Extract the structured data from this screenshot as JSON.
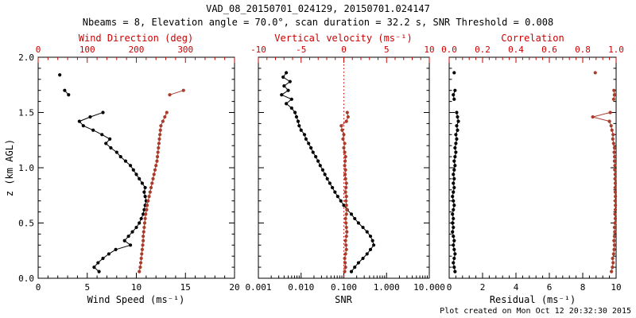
{
  "header": {
    "title": "VAD_08_20150701_024129, 20150701.024147",
    "subtitle": "Nbeams = 8, Elevation angle = 70.0°, scan duration = 32.2 s, SNR Threshold = 0.008"
  },
  "footer": {
    "created": "Plot created on Mon Oct 12 20:32:30 2015"
  },
  "colors": {
    "black": "#000000",
    "red_series": "#a93c2b",
    "red_axis": "#cc0000",
    "background": "#ffffff"
  },
  "y_axis": {
    "label": "z (km AGL)",
    "range": [
      0,
      2
    ],
    "majors": [
      {
        "v": 0.0,
        "label": "0.0"
      },
      {
        "v": 0.5,
        "label": "0.5"
      },
      {
        "v": 1.0,
        "label": "1.0"
      },
      {
        "v": 1.5,
        "label": "1.5"
      },
      {
        "v": 2.0,
        "label": "2.0"
      }
    ]
  },
  "chart_data": [
    {
      "type": "scatter",
      "name": "wind-panel",
      "top_title": "Wind Direction (deg)",
      "bottom_title": "Wind Speed (ms⁻¹)",
      "bottom_axis": {
        "scale": "linear",
        "range": [
          0,
          20
        ],
        "ticks": [
          {
            "v": 0,
            "label": "0"
          },
          {
            "v": 5,
            "label": "5"
          },
          {
            "v": 10,
            "label": "10"
          },
          {
            "v": 15,
            "label": "15"
          },
          {
            "v": 20,
            "label": "20"
          }
        ]
      },
      "top_axis": {
        "scale": "linear",
        "range": [
          0,
          400
        ],
        "ticks": [
          {
            "v": 0,
            "label": "0"
          },
          {
            "v": 100,
            "label": "100"
          },
          {
            "v": 200,
            "label": "200"
          },
          {
            "v": 300,
            "label": "300"
          },
          {
            "v": 400,
            "label": ""
          }
        ]
      },
      "series": [
        {
          "name": "wind_speed",
          "axis": "bottom",
          "color": "black",
          "z": [
            0.06,
            0.1,
            0.14,
            0.18,
            0.22,
            0.26,
            0.3,
            0.34,
            0.38,
            0.42,
            0.46,
            0.5,
            0.54,
            0.58,
            0.62,
            0.66,
            0.7,
            0.74,
            0.78,
            0.82,
            0.86,
            0.9,
            0.94,
            0.98,
            1.02,
            1.06,
            1.1,
            1.14,
            1.18,
            1.22,
            1.26,
            1.3,
            1.34,
            1.38,
            1.42,
            1.46,
            1.5,
            1.66,
            1.7,
            1.84
          ],
          "v": [
            6.2,
            5.7,
            6.1,
            6.6,
            7.2,
            7.9,
            9.4,
            8.8,
            9.2,
            9.6,
            10.0,
            10.3,
            10.5,
            10.7,
            10.8,
            10.9,
            11.0,
            10.9,
            10.8,
            10.9,
            10.6,
            10.3,
            10.0,
            9.7,
            9.4,
            8.9,
            8.4,
            8.0,
            7.4,
            6.9,
            7.3,
            6.5,
            5.6,
            4.6,
            4.2,
            5.3,
            6.6,
            3.1,
            2.7,
            2.2
          ]
        },
        {
          "name": "wind_direction",
          "axis": "top",
          "color": "red_series",
          "z": [
            0.06,
            0.1,
            0.14,
            0.18,
            0.22,
            0.26,
            0.3,
            0.34,
            0.38,
            0.42,
            0.46,
            0.5,
            0.54,
            0.58,
            0.62,
            0.66,
            0.7,
            0.74,
            0.78,
            0.82,
            0.86,
            0.9,
            0.94,
            0.98,
            1.02,
            1.06,
            1.1,
            1.14,
            1.18,
            1.22,
            1.26,
            1.3,
            1.34,
            1.38,
            1.42,
            1.46,
            1.5,
            1.66,
            1.7
          ],
          "v": [
            206,
            208,
            209,
            210,
            211,
            212,
            213,
            214,
            214,
            215,
            216,
            217,
            218,
            219,
            221,
            222,
            224,
            226,
            228,
            230,
            232,
            234,
            236,
            238,
            240,
            242,
            243,
            244,
            245,
            246,
            247,
            248,
            249,
            250,
            254,
            258,
            262,
            268,
            296
          ]
        }
      ]
    },
    {
      "type": "scatter",
      "name": "snr-panel",
      "top_title": "Vertical velocity (ms⁻¹)",
      "bottom_title": "SNR",
      "bottom_axis": {
        "scale": "log",
        "range": [
          0.001,
          10
        ],
        "ticks": [
          {
            "v": 0.001,
            "label": "0.001"
          },
          {
            "v": 0.01,
            "label": "0.010"
          },
          {
            "v": 0.1,
            "label": "0.100"
          },
          {
            "v": 1,
            "label": "1.000"
          },
          {
            "v": 10,
            "label": "10.000"
          }
        ]
      },
      "top_axis": {
        "scale": "linear",
        "range": [
          -10,
          10
        ],
        "ticks": [
          {
            "v": -10,
            "label": "-10"
          },
          {
            "v": -5,
            "label": "-5"
          },
          {
            "v": 0,
            "label": "0"
          },
          {
            "v": 5,
            "label": "5"
          },
          {
            "v": 10,
            "label": "10"
          }
        ]
      },
      "refline": {
        "axis": "top",
        "value": 0
      },
      "series": [
        {
          "name": "snr",
          "axis": "bottom",
          "color": "black",
          "z": [
            0.06,
            0.1,
            0.14,
            0.18,
            0.22,
            0.26,
            0.3,
            0.34,
            0.38,
            0.42,
            0.46,
            0.5,
            0.54,
            0.58,
            0.62,
            0.66,
            0.7,
            0.74,
            0.78,
            0.82,
            0.86,
            0.9,
            0.94,
            0.98,
            1.02,
            1.06,
            1.1,
            1.14,
            1.18,
            1.22,
            1.26,
            1.3,
            1.34,
            1.38,
            1.42,
            1.46,
            1.5,
            1.54,
            1.58,
            1.62,
            1.66,
            1.7,
            1.74,
            1.78,
            1.82,
            1.86
          ],
          "v": [
            0.15,
            0.18,
            0.22,
            0.28,
            0.35,
            0.42,
            0.5,
            0.47,
            0.42,
            0.35,
            0.28,
            0.22,
            0.18,
            0.15,
            0.12,
            0.1,
            0.085,
            0.072,
            0.062,
            0.054,
            0.047,
            0.041,
            0.036,
            0.032,
            0.028,
            0.025,
            0.022,
            0.019,
            0.017,
            0.015,
            0.013,
            0.012,
            0.01,
            0.009,
            0.0085,
            0.0078,
            0.0072,
            0.006,
            0.0045,
            0.006,
            0.0035,
            0.005,
            0.004,
            0.0055,
            0.0038,
            0.0045
          ]
        },
        {
          "name": "vertical_velocity",
          "axis": "top",
          "color": "red_series",
          "z": [
            0.06,
            0.1,
            0.14,
            0.18,
            0.22,
            0.26,
            0.3,
            0.34,
            0.38,
            0.42,
            0.46,
            0.5,
            0.54,
            0.58,
            0.62,
            0.66,
            0.7,
            0.74,
            0.78,
            0.82,
            0.86,
            0.9,
            0.94,
            0.98,
            1.02,
            1.06,
            1.1,
            1.14,
            1.18,
            1.22,
            1.26,
            1.3,
            1.34,
            1.38,
            1.42,
            1.46,
            1.5
          ],
          "v": [
            0.1,
            0.2,
            0.15,
            0.1,
            0.2,
            0.3,
            0.25,
            0.2,
            0.3,
            0.35,
            0.3,
            0.25,
            0.2,
            0.3,
            0.35,
            0.3,
            0.25,
            0.3,
            0.2,
            0.25,
            0.3,
            0.2,
            0.15,
            0.2,
            0.1,
            0.15,
            0.2,
            0.1,
            0.0,
            0.1,
            -0.1,
            0.0,
            -0.2,
            -0.3,
            0.3,
            0.5,
            0.4
          ]
        }
      ]
    },
    {
      "type": "scatter",
      "name": "residual-panel",
      "top_title": "Correlation",
      "bottom_title": "Residual (ms⁻¹)",
      "bottom_axis": {
        "scale": "linear",
        "range": [
          0,
          10
        ],
        "ticks": [
          {
            "v": 0,
            "label": "0"
          },
          {
            "v": 2,
            "label": "2"
          },
          {
            "v": 4,
            "label": "4"
          },
          {
            "v": 6,
            "label": "6"
          },
          {
            "v": 8,
            "label": "8"
          },
          {
            "v": 10,
            "label": "10"
          }
        ]
      },
      "top_axis": {
        "scale": "linear",
        "range": [
          0,
          1
        ],
        "ticks": [
          {
            "v": 0,
            "label": "0.0"
          },
          {
            "v": 0.2,
            "label": "0.2"
          },
          {
            "v": 0.4,
            "label": "0.4"
          },
          {
            "v": 0.6,
            "label": "0.6"
          },
          {
            "v": 0.8,
            "label": "0.8"
          },
          {
            "v": 1,
            "label": "1.0"
          }
        ]
      },
      "series": [
        {
          "name": "residual",
          "axis": "bottom",
          "color": "black",
          "z": [
            0.06,
            0.1,
            0.14,
            0.18,
            0.22,
            0.26,
            0.3,
            0.34,
            0.38,
            0.42,
            0.46,
            0.5,
            0.54,
            0.58,
            0.62,
            0.66,
            0.7,
            0.74,
            0.78,
            0.82,
            0.86,
            0.9,
            0.94,
            0.98,
            1.02,
            1.06,
            1.1,
            1.14,
            1.18,
            1.22,
            1.26,
            1.3,
            1.34,
            1.38,
            1.42,
            1.46,
            1.5,
            1.62,
            1.66,
            1.7,
            1.86
          ],
          "v": [
            0.35,
            0.3,
            0.25,
            0.3,
            0.35,
            0.3,
            0.25,
            0.3,
            0.25,
            0.2,
            0.25,
            0.2,
            0.25,
            0.2,
            0.25,
            0.3,
            0.25,
            0.2,
            0.25,
            0.3,
            0.25,
            0.3,
            0.25,
            0.3,
            0.35,
            0.3,
            0.35,
            0.4,
            0.35,
            0.4,
            0.45,
            0.4,
            0.5,
            0.45,
            0.55,
            0.5,
            0.45,
            0.3,
            0.25,
            0.35,
            0.3
          ]
        },
        {
          "name": "correlation",
          "axis": "top",
          "color": "red_series",
          "z": [
            0.06,
            0.1,
            0.14,
            0.18,
            0.22,
            0.26,
            0.3,
            0.34,
            0.38,
            0.42,
            0.46,
            0.5,
            0.54,
            0.58,
            0.62,
            0.66,
            0.7,
            0.74,
            0.78,
            0.82,
            0.86,
            0.9,
            0.94,
            0.98,
            1.02,
            1.06,
            1.1,
            1.14,
            1.18,
            1.22,
            1.26,
            1.3,
            1.34,
            1.38,
            1.42,
            1.46,
            1.5,
            1.62,
            1.66,
            1.7,
            1.86
          ],
          "v": [
            0.972,
            0.978,
            0.982,
            0.979,
            0.985,
            0.988,
            0.99,
            0.987,
            0.99,
            0.992,
            0.99,
            0.993,
            0.995,
            0.993,
            0.995,
            0.996,
            0.995,
            0.996,
            0.995,
            0.994,
            0.995,
            0.993,
            0.994,
            0.992,
            0.993,
            0.99,
            0.991,
            0.988,
            0.99,
            0.985,
            0.98,
            0.982,
            0.975,
            0.97,
            0.96,
            0.86,
            0.965,
            0.985,
            0.99,
            0.987,
            0.875
          ]
        }
      ]
    }
  ]
}
